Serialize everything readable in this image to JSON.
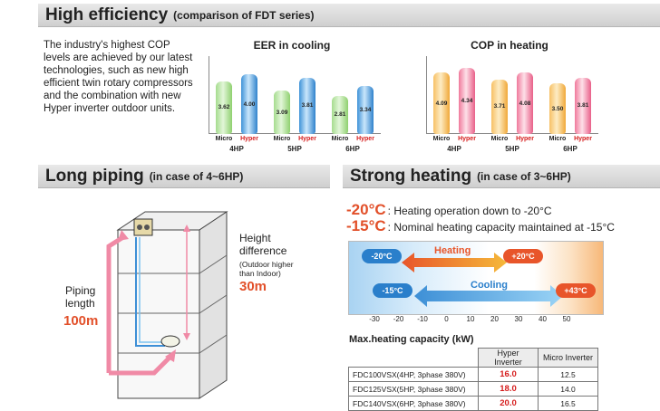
{
  "efficiency": {
    "title": "High efficiency",
    "subtitle": "(comparison of FDT series)",
    "intro": "The industry's highest COP levels are achieved by our latest technologies, such as new high efficient twin rotary compressors and the combination with new Hyper inverter outdoor units."
  },
  "chart_data": [
    {
      "type": "bar",
      "title": "EER in cooling",
      "categories": [
        "4HP",
        "5HP",
        "6HP"
      ],
      "series": [
        {
          "name": "Micro",
          "values": [
            3.62,
            3.09,
            2.81
          ]
        },
        {
          "name": "Hyper",
          "values": [
            4.0,
            3.81,
            3.34
          ]
        }
      ],
      "colors": {
        "Micro": "#8fd06f",
        "Hyper": "#2f82cc"
      }
    },
    {
      "type": "bar",
      "title": "COP in heating",
      "categories": [
        "4HP",
        "5HP",
        "6HP"
      ],
      "series": [
        {
          "name": "Micro",
          "values": [
            4.09,
            3.71,
            3.5
          ]
        },
        {
          "name": "Hyper",
          "values": [
            4.34,
            4.08,
            3.81
          ]
        }
      ],
      "colors": {
        "Micro": "#f0a838",
        "Hyper": "#e96089"
      }
    }
  ],
  "bar_labels": {
    "micro": "Micro",
    "hyper": "Hyper"
  },
  "piping": {
    "title": "Long piping",
    "subtitle": "(in case of 4~6HP)",
    "piping_label_1": "Piping",
    "piping_label_2": "length",
    "piping_value": "100m",
    "height_label_1": "Height",
    "height_label_2": "difference",
    "height_note_1": "(Outdoor higher",
    "height_note_2": "than Indoor)",
    "height_value": "30m"
  },
  "heating": {
    "title": "Strong heating",
    "subtitle": "(in case of 3~6HP)",
    "line1_temp": "-20°C",
    "line1_text": ": Heating operation down to -20°C",
    "line2_temp": "-15°C",
    "line2_text": ": Nominal heating capacity maintained at -15°C",
    "heating_label": "Heating",
    "cooling_label": "Cooling",
    "heat_min": "-20°C",
    "heat_max": "+20°C",
    "cool_min": "-15°C",
    "cool_max": "+43°C",
    "ticks": [
      "-30",
      "-20",
      "-10",
      "0",
      "10",
      "20",
      "30",
      "40",
      "50"
    ],
    "colors": {
      "heating_arrow": "#e8552a",
      "cooling_arrow": "#3d8fd6",
      "oval_blue": "#2a7fcb",
      "oval_red": "#e8552a"
    }
  },
  "capacity": {
    "title": "Max.heating capacity (kW)",
    "headers": [
      "",
      "Hyper Inverter",
      "Micro Inverter"
    ],
    "rows": [
      {
        "model": "FDC100VSX(4HP, 3phase 380V)",
        "hyper": "16.0",
        "micro": "12.5"
      },
      {
        "model": "FDC125VSX(5HP, 3phase 380V)",
        "hyper": "18.0",
        "micro": "14.0"
      },
      {
        "model": "FDC140VSX(6HP, 3phase 380V)",
        "hyper": "20.0",
        "micro": "16.5"
      }
    ]
  }
}
